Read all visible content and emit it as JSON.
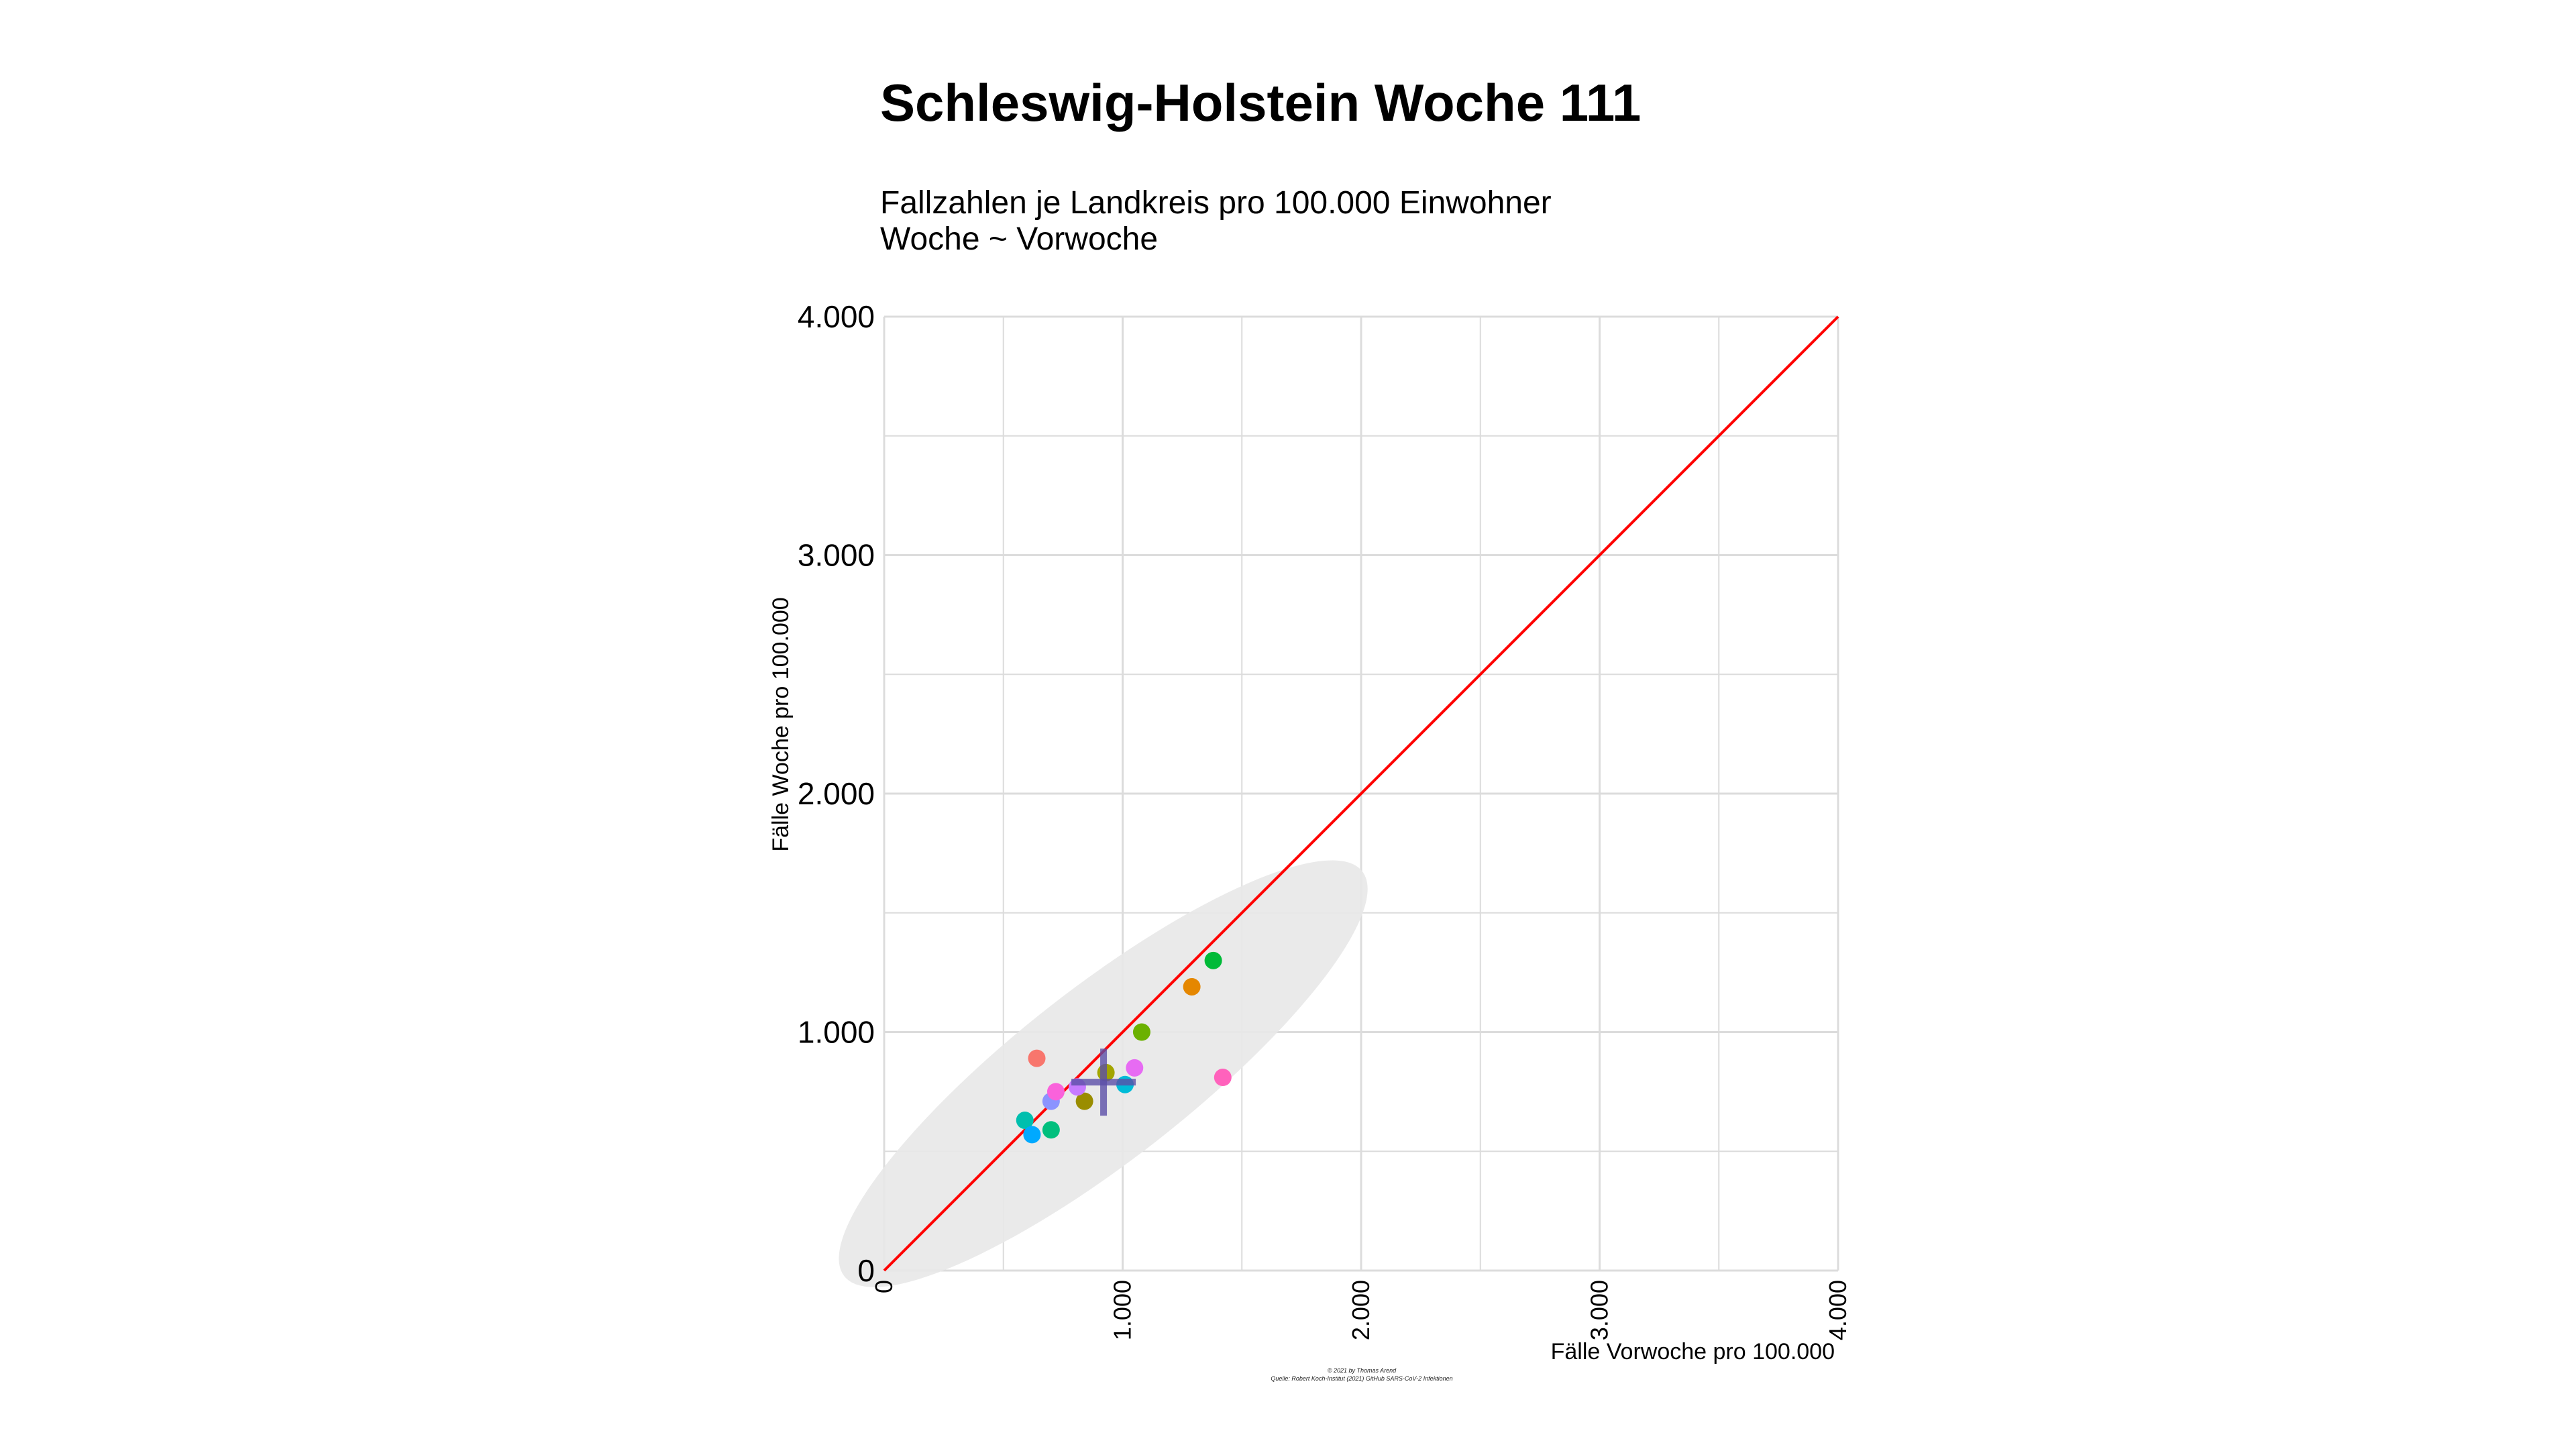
{
  "chart_data": {
    "type": "scatter",
    "title": "Schleswig-Holstein Woche 111",
    "subtitle_lines": [
      "Fallzahlen je Landkreis pro 100.000 Einwohner",
      "Woche ~ Vorwoche"
    ],
    "xlabel": "Fälle Vorwoche pro 100.000",
    "ylabel": "Fälle Woche pro 100.000",
    "xlim": [
      0,
      4000
    ],
    "ylim": [
      0,
      4000
    ],
    "x_ticks": [
      0,
      1000,
      2000,
      3000,
      4000
    ],
    "x_tick_labels": [
      "0",
      "1.000",
      "2.000",
      "3.000",
      "4.000"
    ],
    "y_ticks": [
      0,
      1000,
      2000,
      3000,
      4000
    ],
    "y_tick_labels": [
      "0",
      "1.000",
      "2.000",
      "3.000",
      "4.000"
    ],
    "grid": true,
    "reference_line": {
      "slope": 1,
      "intercept": 0,
      "color": "#ff0000"
    },
    "ellipse": {
      "color": "#e8e8e8"
    },
    "mean_cross": {
      "x": 920,
      "y": 790,
      "color": "#5b4fa8"
    },
    "points": [
      {
        "x": 640,
        "y": 890,
        "color": "#f8766d"
      },
      {
        "x": 1290,
        "y": 1190,
        "color": "#e58700"
      },
      {
        "x": 930,
        "y": 830,
        "color": "#a3a500"
      },
      {
        "x": 840,
        "y": 710,
        "color": "#9a8d00"
      },
      {
        "x": 1080,
        "y": 1000,
        "color": "#6bb100"
      },
      {
        "x": 1380,
        "y": 1300,
        "color": "#00ba38"
      },
      {
        "x": 700,
        "y": 590,
        "color": "#00bf7d"
      },
      {
        "x": 590,
        "y": 630,
        "color": "#00bfae"
      },
      {
        "x": 1010,
        "y": 780,
        "color": "#00bcd8"
      },
      {
        "x": 620,
        "y": 570,
        "color": "#00a9ff"
      },
      {
        "x": 700,
        "y": 710,
        "color": "#8b93ff"
      },
      {
        "x": 810,
        "y": 770,
        "color": "#c77cff"
      },
      {
        "x": 1050,
        "y": 850,
        "color": "#e76bf3"
      },
      {
        "x": 720,
        "y": 750,
        "color": "#fa62db"
      },
      {
        "x": 1420,
        "y": 810,
        "color": "#ff62bc"
      }
    ],
    "caption_lines": [
      "© 2021 by Thomas Arend",
      "Quelle: Robert Koch-Institut (2021) GitHub SARS-CoV-2 Infektionen"
    ]
  }
}
